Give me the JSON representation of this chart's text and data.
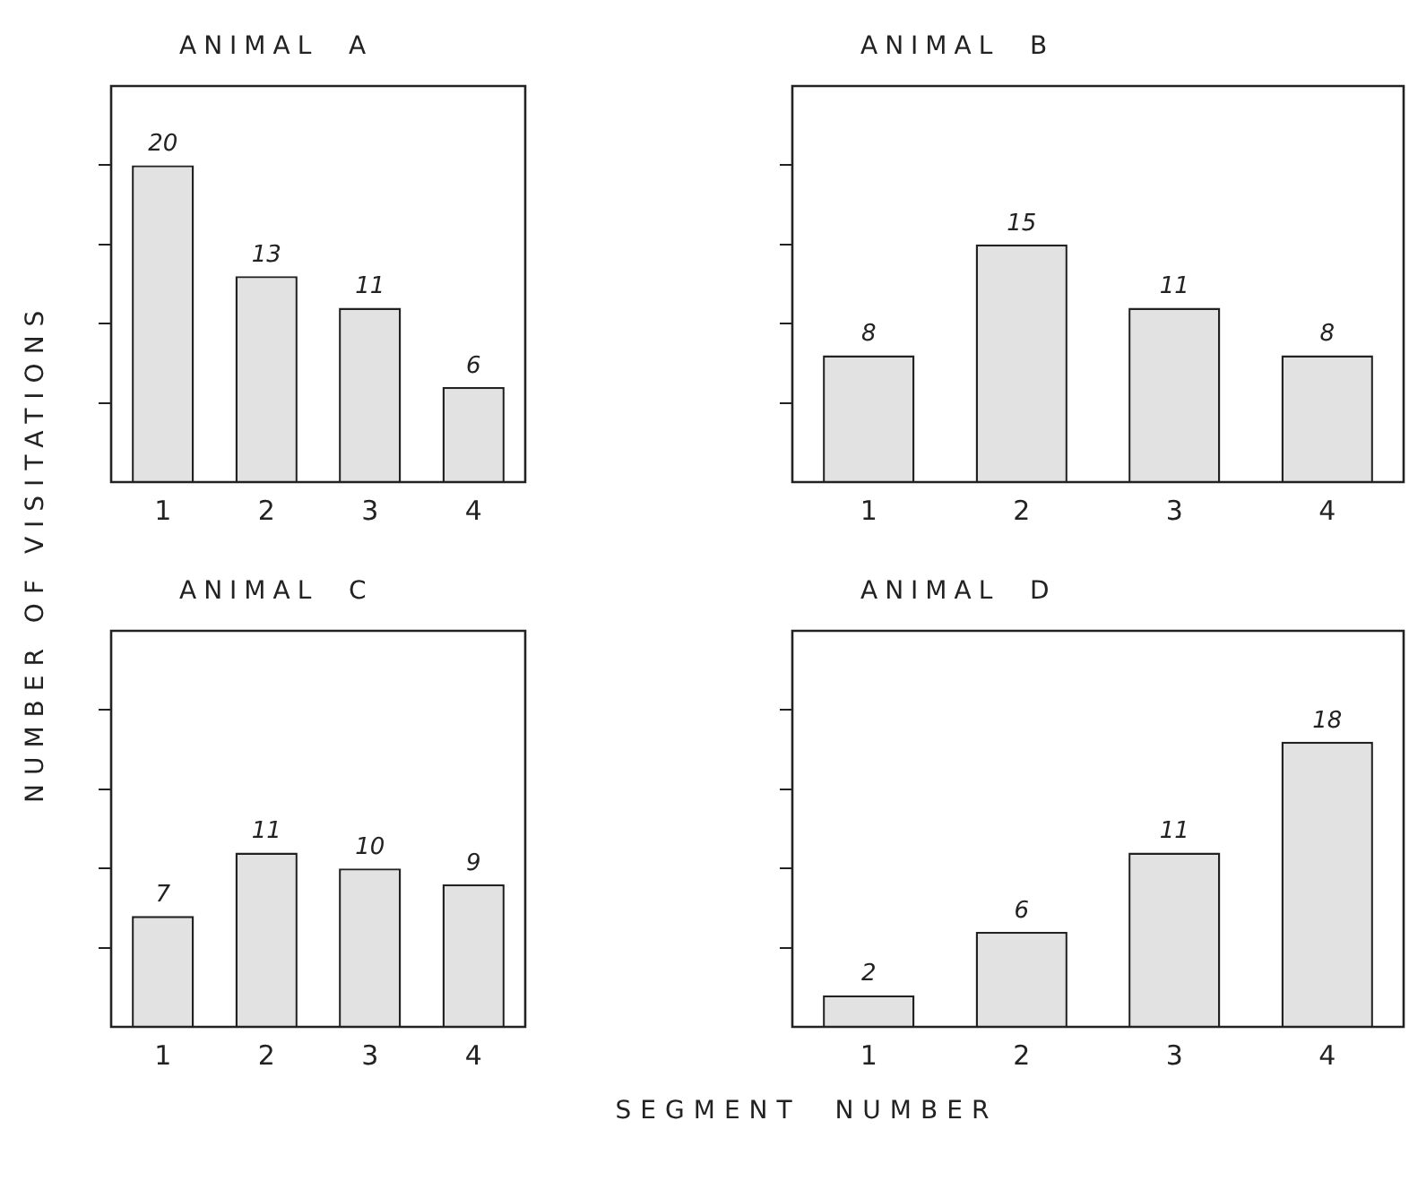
{
  "chart_data": [
    {
      "type": "bar",
      "title": "ANIMAL  A",
      "ylabel": "NUMBER OF VISITATIONS",
      "categories": [
        "1",
        "2",
        "3",
        "4"
      ],
      "values": [
        20,
        13,
        11,
        6
      ],
      "color": "#e2e2e2",
      "ylim": [
        0,
        25
      ],
      "yticks": [
        {
          "value": 5,
          "label": null
        },
        {
          "value": 10,
          "label": null
        },
        {
          "value": 15,
          "label": null
        },
        {
          "value": 20,
          "label": null
        }
      ],
      "tick_labels": "x",
      "data_labels": true,
      "grid": false,
      "legend": false
    },
    {
      "type": "bar",
      "title": "ANIMAL  B",
      "categories": [
        "1",
        "2",
        "3",
        "4"
      ],
      "values": [
        8,
        15,
        11,
        8
      ],
      "color": "#e2e2e2",
      "ylim": [
        0,
        25
      ],
      "yticks": [
        {
          "value": 5,
          "label": null
        },
        {
          "value": 10,
          "label": null
        },
        {
          "value": 15,
          "label": null
        },
        {
          "value": 20,
          "label": null
        }
      ],
      "tick_labels": "x",
      "data_labels": true,
      "grid": false,
      "legend": false
    },
    {
      "type": "bar",
      "title": "ANIMAL  C",
      "categories": [
        "1",
        "2",
        "3",
        "4"
      ],
      "values": [
        7,
        11,
        10,
        9
      ],
      "color": "#e2e2e2",
      "ylim": [
        0,
        25
      ],
      "yticks": [
        {
          "value": 5,
          "label": null
        },
        {
          "value": 10,
          "label": null
        },
        {
          "value": 15,
          "label": null
        },
        {
          "value": 20,
          "label": null
        }
      ],
      "tick_labels": "x",
      "data_labels": true,
      "grid": false,
      "legend": false
    },
    {
      "type": "bar",
      "title": "ANIMAL  D",
      "xlabel": "SEGMENT  NUMBER",
      "categories": [
        "1",
        "2",
        "3",
        "4"
      ],
      "values": [
        2,
        6,
        11,
        18
      ],
      "color": "#e2e2e2",
      "ylim": [
        0,
        25
      ],
      "yticks": [
        {
          "value": 5,
          "label": null
        },
        {
          "value": 10,
          "label": null
        },
        {
          "value": 15,
          "label": null
        },
        {
          "value": 20,
          "label": null
        }
      ],
      "tick_labels": "x",
      "data_labels": true,
      "grid": false,
      "legend": false
    }
  ]
}
